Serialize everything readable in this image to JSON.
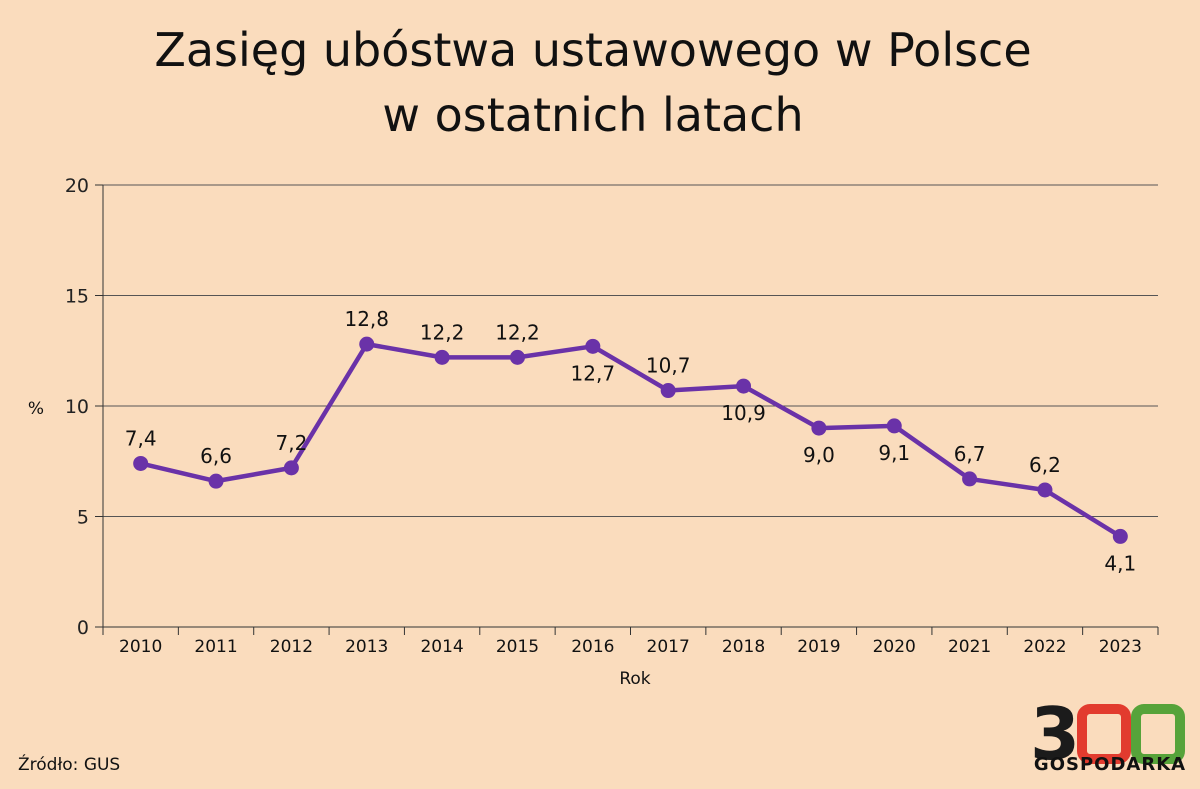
{
  "chart_data": {
    "type": "line",
    "title_lines": [
      "Zasięg ubóstwa ustawowego w Polsce",
      "w ostatnich latach"
    ],
    "xlabel": "Rok",
    "ylabel": "%",
    "ylim": [
      0,
      20
    ],
    "yticks": [
      "0",
      "5",
      "10",
      "15",
      "20"
    ],
    "categories": [
      "2010",
      "2011",
      "2012",
      "2013",
      "2014",
      "2015",
      "2016",
      "2017",
      "2018",
      "2019",
      "2020",
      "2021",
      "2022",
      "2023"
    ],
    "values": [
      7.4,
      6.6,
      7.2,
      12.8,
      12.2,
      12.2,
      12.7,
      10.7,
      10.9,
      9.0,
      9.1,
      6.7,
      6.2,
      4.1
    ],
    "value_labels": [
      "7,4",
      "6,6",
      "7,2",
      "12,8",
      "12,2",
      "12,2",
      "12,7",
      "10,7",
      "10,9",
      "9,0",
      "9,1",
      "6,7",
      "6,2",
      "4,1"
    ],
    "label_positions": [
      "above",
      "above",
      "above",
      "above",
      "above",
      "above",
      "below",
      "above",
      "below",
      "below",
      "below",
      "above",
      "above",
      "below"
    ],
    "grid": "horizontal",
    "line_color": "#6a32a8"
  },
  "footer": {
    "source": "Źródło: GUS",
    "logo_number": "300",
    "logo_text": "GOSPODARKA",
    "logo_colors": [
      "#1b1b1b",
      "#e23b2e",
      "#56a33a"
    ]
  }
}
